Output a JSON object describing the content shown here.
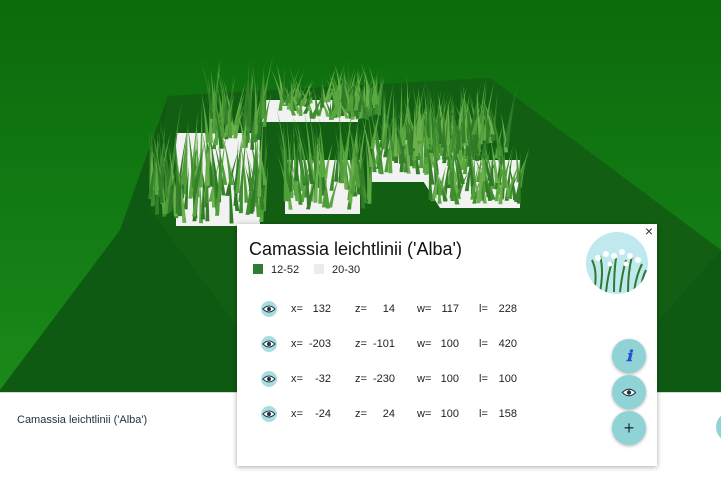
{
  "plant": {
    "name": "Camassia leichtlinii ('Alba')"
  },
  "panel": {
    "title": "Camassia leichtlinii ('Alba')",
    "close_label": "×",
    "legend": [
      {
        "label": "12-52",
        "color": "#2e7d32"
      },
      {
        "label": "20-30",
        "color": "#ececec"
      }
    ],
    "rows": [
      {
        "x": "132",
        "z": "14",
        "w": "117",
        "l": "228"
      },
      {
        "x": "-203",
        "z": "-101",
        "w": "100",
        "l": "420"
      },
      {
        "x": "-32",
        "z": "-230",
        "w": "100",
        "l": "100"
      },
      {
        "x": "-24",
        "z": "24",
        "w": "100",
        "l": "158"
      }
    ],
    "field_labels": {
      "x": "x=",
      "z": "z=",
      "w": "w=",
      "l": "l="
    },
    "buttons": {
      "info_label": "ℹ",
      "view_icon": "eye-icon",
      "add_label": "+"
    }
  },
  "colors": {
    "fab": "#8fd3d6",
    "eye_bg": "#a8dde0",
    "ground_dark": "#0f5a12",
    "ground": "#1b7b1b"
  }
}
